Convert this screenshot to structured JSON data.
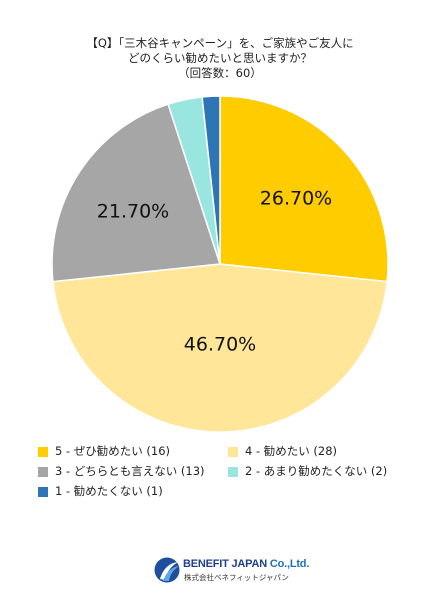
{
  "title": {
    "line1": "【Q】「三木谷キャンペーン」を、ご家族やご友人に",
    "line2": "どのくらい勧めたいと思いますか？",
    "line3": "（回答数：60）"
  },
  "chart_data": {
    "type": "pie",
    "start": "12 o'clock",
    "direction": "clockwise",
    "slices": [
      {
        "name": "5 - ぜひ勧めたい (16)",
        "value": 26.7,
        "label": "26.70%",
        "color": "#FFCC00"
      },
      {
        "name": "4 - 勧めたい (28)",
        "value": 46.7,
        "label": "46.70%",
        "color": "#FFE699"
      },
      {
        "name": "3 - どちらとも言えない (13)",
        "value": 21.7,
        "label": "21.70%",
        "color": "#A6A6A6"
      },
      {
        "name": "2 - あまり勧めたくない (2)",
        "value": 3.3,
        "label": "",
        "color": "#99E6E0"
      },
      {
        "name": "1 - 勧めたくない (1)",
        "value": 1.7,
        "label": "",
        "color": "#2E75B6"
      }
    ],
    "legend_placement": "bottom"
  },
  "legend": {
    "items": [
      {
        "label": "5 - ぜひ勧めたい (16)",
        "color": "#FFCC00"
      },
      {
        "label": "4 - 勧めたい (28)",
        "color": "#FFE699"
      },
      {
        "label": "3 - どちらとも言えない (13)",
        "color": "#A6A6A6"
      },
      {
        "label": "2 - あまり勧めたくない (2)",
        "color": "#99E6E0"
      },
      {
        "label": "1 - 勧めたくない (1)",
        "color": "#2E75B6"
      }
    ]
  },
  "logo": {
    "name_part1": "BENEFIT JAPAN",
    "name_part2": " Co.,Ltd.",
    "subtitle": "株式会社ベネフィットジャパン",
    "icon": "benefit-japan-logo-icon"
  }
}
